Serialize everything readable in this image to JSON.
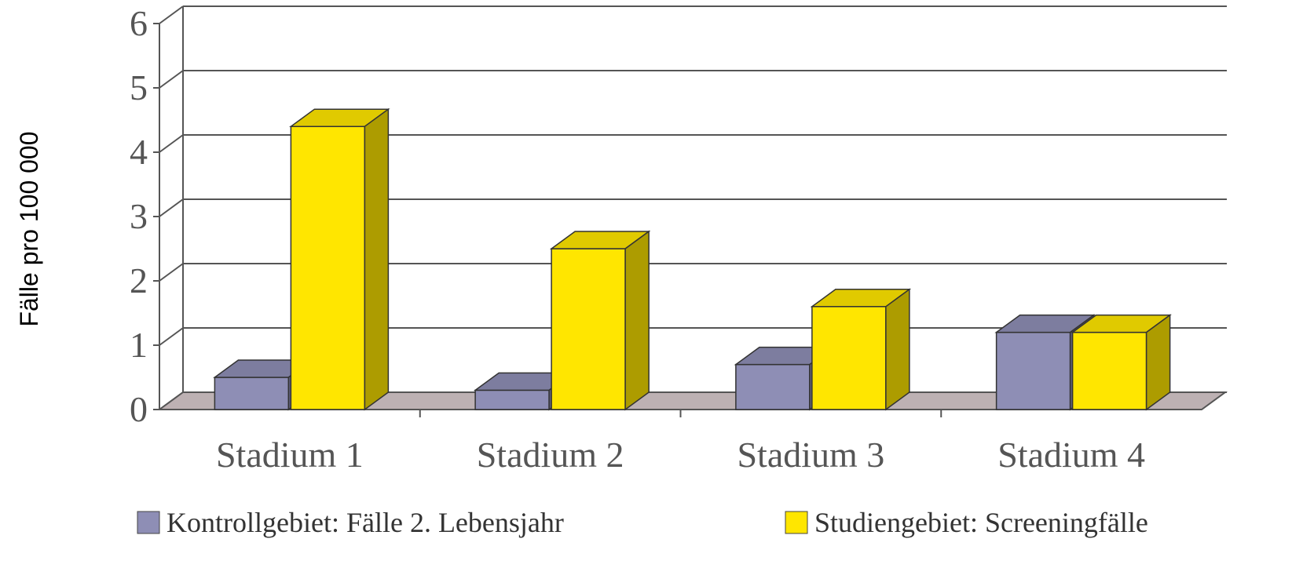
{
  "chart_data": {
    "type": "bar",
    "title": "",
    "xlabel": "",
    "ylabel": "Fälle pro 100 000",
    "categories": [
      "Stadium 1",
      "Stadium 2",
      "Stadium 3",
      "Stadium 4"
    ],
    "series": [
      {
        "name": "Kontrollgebiet: Fälle 2. Lebensjahr",
        "values": [
          0.5,
          0.3,
          0.7,
          1.2
        ],
        "color": "#8e8eb5"
      },
      {
        "name": "Studiengebiet: Screeningfälle",
        "values": [
          4.4,
          2.5,
          1.6,
          1.2
        ],
        "color": "#ffe600"
      }
    ],
    "ylim": [
      0,
      6
    ],
    "yticks": [
      "0",
      "1",
      "2",
      "3",
      "4",
      "5",
      "6"
    ],
    "grid": true,
    "legend": "bottom",
    "style": "3d-bar"
  }
}
